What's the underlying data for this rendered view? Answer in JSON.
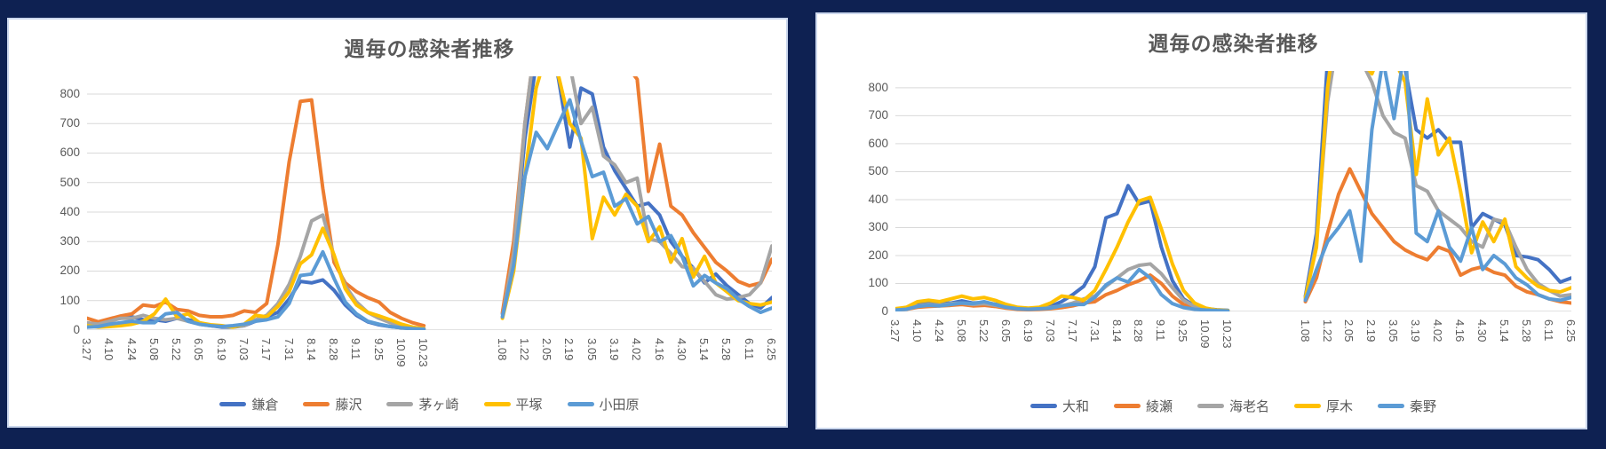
{
  "ui": {
    "background_color": "#0E2152",
    "card_background": "#FFFFFF",
    "card_border_color": "#CBD7ED",
    "title_color": "#595959",
    "axis_label_color": "#595959",
    "gridline_color": "#D9D9D9",
    "zero_line_color": "#C6C6C6"
  },
  "chart_data": [
    {
      "type": "line",
      "title": "週毎の感染者推移",
      "ylabel": "",
      "xlabel": "",
      "ylim": [
        0,
        800
      ],
      "plot_max": 860,
      "grid": "horizontal",
      "legend_position": "bottom",
      "y_ticks": [
        0,
        100,
        200,
        300,
        400,
        500,
        600,
        700,
        800
      ],
      "categories": [
        "3.27",
        "4.03",
        "4.10",
        "4.17",
        "4.24",
        "5.01",
        "5.08",
        "5.15",
        "5.22",
        "5.29",
        "6.05",
        "6.12",
        "6.19",
        "6.26",
        "7.03",
        "7.10",
        "7.17",
        "7.24",
        "7.31",
        "8.07",
        "8.14",
        "8.21",
        "8.28",
        "9.04",
        "9.11",
        "9.18",
        "9.25",
        "10.02",
        "10.09",
        "10.16",
        "10.23",
        "",
        "",
        "",
        "",
        "",
        "",
        "1.08",
        "1.15",
        "1.22",
        "1.29",
        "2.05",
        "2.12",
        "2.19",
        "2.26",
        "3.05",
        "3.12",
        "3.19",
        "3.26",
        "4.02",
        "4.09",
        "4.16",
        "4.23",
        "4.30",
        "5.07",
        "5.14",
        "5.21",
        "5.28",
        "6.04",
        "6.11",
        "6.18",
        "6.25"
      ],
      "label_slots": [
        0,
        2,
        4,
        6,
        8,
        10,
        12,
        14,
        16,
        18,
        20,
        22,
        24,
        26,
        28,
        30,
        37,
        39,
        41,
        43,
        45,
        47,
        49,
        51,
        53,
        55,
        57,
        59,
        61
      ],
      "x_tick_labels": [
        "3.27",
        "4.10",
        "4.24",
        "5.08",
        "5.22",
        "6.05",
        "6.19",
        "7.03",
        "7.17",
        "7.31",
        "8.14",
        "8.28",
        "9.11",
        "9.25",
        "10.09",
        "10.23",
        "1.08",
        "1.22",
        "2.05",
        "2.19",
        "3.05",
        "3.19",
        "4.02",
        "4.16",
        "4.30",
        "5.14",
        "5.28",
        "6.11",
        "6.25"
      ],
      "series": [
        {
          "name": "鎌倉",
          "color": "#4472C4",
          "values": [
            10,
            25,
            35,
            40,
            45,
            35,
            35,
            30,
            40,
            35,
            25,
            15,
            10,
            10,
            15,
            30,
            45,
            60,
            105,
            165,
            160,
            170,
            135,
            85,
            50,
            28,
            18,
            12,
            8,
            5,
            3,
            null,
            null,
            null,
            null,
            null,
            null,
            55,
            250,
            650,
            900,
            1050,
            850,
            620,
            820,
            800,
            620,
            540,
            480,
            420,
            430,
            390,
            300,
            250,
            210,
            160,
            190,
            150,
            120,
            90,
            75,
            110
          ]
        },
        {
          "name": "藤沢",
          "color": "#ED7D31",
          "values": [
            40,
            28,
            38,
            48,
            55,
            85,
            80,
            95,
            70,
            65,
            50,
            45,
            45,
            50,
            65,
            60,
            90,
            290,
            570,
            775,
            780,
            480,
            230,
            160,
            130,
            110,
            95,
            60,
            40,
            25,
            15,
            null,
            null,
            null,
            null,
            null,
            null,
            60,
            300,
            700,
            1000,
            1100,
            1100,
            1050,
            1100,
            1050,
            1000,
            950,
            900,
            850,
            470,
            630,
            420,
            390,
            330,
            280,
            230,
            200,
            165,
            150,
            160,
            240
          ]
        },
        {
          "name": "茅ヶ崎",
          "color": "#A5A5A5",
          "values": [
            25,
            20,
            30,
            40,
            40,
            50,
            40,
            35,
            40,
            30,
            20,
            15,
            12,
            12,
            15,
            35,
            50,
            90,
            155,
            250,
            370,
            390,
            250,
            150,
            95,
            60,
            40,
            25,
            15,
            8,
            5,
            null,
            null,
            null,
            null,
            null,
            null,
            45,
            260,
            700,
            1000,
            1100,
            1050,
            900,
            700,
            755,
            590,
            560,
            500,
            515,
            310,
            300,
            260,
            215,
            210,
            165,
            120,
            105,
            110,
            120,
            160,
            285
          ]
        },
        {
          "name": "平塚",
          "color": "#FFC000",
          "values": [
            15,
            10,
            12,
            15,
            20,
            30,
            55,
            105,
            45,
            55,
            25,
            18,
            15,
            10,
            20,
            50,
            45,
            80,
            130,
            225,
            255,
            345,
            255,
            140,
            85,
            60,
            48,
            35,
            20,
            10,
            5,
            null,
            null,
            null,
            null,
            null,
            null,
            40,
            200,
            520,
            820,
            950,
            860,
            700,
            650,
            310,
            450,
            390,
            460,
            420,
            300,
            350,
            230,
            310,
            180,
            250,
            160,
            130,
            100,
            90,
            85,
            95
          ]
        },
        {
          "name": "小田原",
          "color": "#5B9BD5",
          "values": [
            10,
            12,
            20,
            25,
            30,
            25,
            25,
            55,
            60,
            30,
            20,
            15,
            12,
            15,
            20,
            30,
            35,
            45,
            90,
            185,
            190,
            265,
            175,
            95,
            55,
            30,
            20,
            12,
            8,
            5,
            3,
            null,
            null,
            null,
            null,
            null,
            null,
            45,
            220,
            520,
            670,
            615,
            700,
            780,
            640,
            520,
            535,
            420,
            445,
            360,
            385,
            300,
            320,
            250,
            150,
            185,
            160,
            140,
            105,
            80,
            60,
            75
          ]
        }
      ]
    },
    {
      "type": "line",
      "title": "週毎の感染者推移",
      "ylabel": "",
      "xlabel": "",
      "ylim": [
        0,
        800
      ],
      "plot_max": 860,
      "grid": "horizontal",
      "legend_position": "bottom",
      "y_ticks": [
        0,
        100,
        200,
        300,
        400,
        500,
        600,
        700,
        800
      ],
      "categories": [
        "3.27",
        "4.03",
        "4.10",
        "4.17",
        "4.24",
        "5.01",
        "5.08",
        "5.15",
        "5.22",
        "5.29",
        "6.05",
        "6.12",
        "6.19",
        "6.26",
        "7.03",
        "7.10",
        "7.17",
        "7.24",
        "7.31",
        "8.07",
        "8.14",
        "8.21",
        "8.28",
        "9.04",
        "9.11",
        "9.18",
        "9.25",
        "10.02",
        "10.09",
        "10.16",
        "10.23",
        "",
        "",
        "",
        "",
        "",
        "",
        "1.08",
        "1.15",
        "1.22",
        "1.29",
        "2.05",
        "2.12",
        "2.19",
        "2.26",
        "3.05",
        "3.12",
        "3.19",
        "3.26",
        "4.02",
        "4.09",
        "4.16",
        "4.23",
        "4.30",
        "5.07",
        "5.14",
        "5.21",
        "5.28",
        "6.04",
        "6.11",
        "6.18",
        "6.25"
      ],
      "label_slots": [
        0,
        2,
        4,
        6,
        8,
        10,
        12,
        14,
        16,
        18,
        20,
        22,
        24,
        26,
        28,
        30,
        37,
        39,
        41,
        43,
        45,
        47,
        49,
        51,
        53,
        55,
        57,
        59,
        61
      ],
      "x_tick_labels": [
        "3.27",
        "4.10",
        "4.24",
        "5.08",
        "5.22",
        "6.05",
        "6.19",
        "7.03",
        "7.17",
        "7.31",
        "8.14",
        "8.28",
        "9.11",
        "9.25",
        "10.09",
        "10.23",
        "1.08",
        "1.22",
        "2.05",
        "2.19",
        "3.05",
        "3.19",
        "4.02",
        "4.16",
        "4.30",
        "5.14",
        "5.28",
        "6.11",
        "6.25"
      ],
      "series": [
        {
          "name": "大和",
          "color": "#4472C4",
          "values": [
            8,
            12,
            30,
            32,
            28,
            30,
            38,
            30,
            32,
            26,
            20,
            14,
            10,
            12,
            18,
            35,
            60,
            90,
            160,
            335,
            350,
            450,
            385,
            395,
            230,
            110,
            45,
            20,
            10,
            6,
            4,
            null,
            null,
            null,
            null,
            null,
            null,
            55,
            280,
            900,
            1150,
            1000,
            950,
            900,
            1000,
            950,
            870,
            650,
            620,
            650,
            605,
            605,
            300,
            350,
            330,
            310,
            200,
            195,
            185,
            150,
            105,
            120
          ]
        },
        {
          "name": "綾瀬",
          "color": "#ED7D31",
          "values": [
            5,
            8,
            15,
            18,
            20,
            22,
            25,
            20,
            22,
            18,
            12,
            8,
            6,
            8,
            10,
            14,
            20,
            30,
            35,
            60,
            75,
            95,
            110,
            130,
            100,
            55,
            25,
            12,
            6,
            3,
            2,
            null,
            null,
            null,
            null,
            null,
            null,
            35,
            120,
            280,
            420,
            510,
            430,
            350,
            300,
            250,
            220,
            200,
            185,
            230,
            215,
            130,
            150,
            160,
            140,
            130,
            90,
            70,
            60,
            45,
            35,
            30
          ]
        },
        {
          "name": "海老名",
          "color": "#A5A5A5",
          "values": [
            6,
            10,
            20,
            25,
            22,
            28,
            30,
            25,
            28,
            22,
            15,
            10,
            8,
            10,
            14,
            20,
            30,
            45,
            55,
            90,
            120,
            150,
            165,
            170,
            135,
            85,
            40,
            18,
            8,
            4,
            3,
            null,
            null,
            null,
            null,
            null,
            null,
            45,
            250,
            750,
            1000,
            1100,
            900,
            820,
            700,
            640,
            620,
            450,
            430,
            360,
            330,
            300,
            250,
            230,
            330,
            320,
            230,
            150,
            100,
            75,
            55,
            60
          ]
        },
        {
          "name": "厚木",
          "color": "#FFC000",
          "values": [
            10,
            15,
            35,
            40,
            35,
            45,
            55,
            45,
            50,
            40,
            25,
            15,
            12,
            15,
            30,
            55,
            50,
            40,
            75,
            150,
            230,
            320,
            395,
            408,
            295,
            170,
            75,
            30,
            12,
            5,
            3,
            null,
            null,
            null,
            null,
            null,
            null,
            50,
            230,
            800,
            1100,
            1000,
            900,
            850,
            950,
            900,
            820,
            490,
            760,
            560,
            620,
            430,
            210,
            320,
            250,
            330,
            160,
            120,
            90,
            75,
            70,
            85
          ]
        },
        {
          "name": "秦野",
          "color": "#5B9BD5",
          "values": [
            5,
            8,
            18,
            22,
            20,
            25,
            30,
            28,
            35,
            25,
            15,
            10,
            8,
            10,
            12,
            20,
            25,
            25,
            50,
            95,
            120,
            105,
            150,
            120,
            60,
            28,
            14,
            8,
            5,
            3,
            2,
            null,
            null,
            null,
            null,
            null,
            null,
            40,
            150,
            250,
            300,
            360,
            180,
            650,
            900,
            690,
            950,
            280,
            250,
            360,
            230,
            180,
            300,
            150,
            200,
            170,
            120,
            95,
            60,
            45,
            40,
            50
          ]
        }
      ]
    }
  ]
}
